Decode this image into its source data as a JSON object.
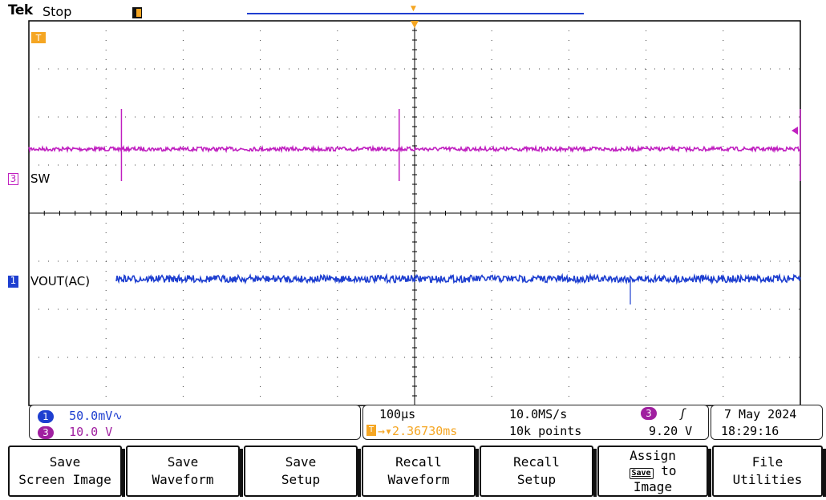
{
  "header": {
    "brand": "Tek",
    "run_state": "Stop"
  },
  "markers": {
    "trigger_marker": "T",
    "trigger_time_marker": "T",
    "channel3_marker": "3",
    "channel1_marker": "1"
  },
  "waveforms": {
    "ch3": {
      "label": "SW",
      "color": "#c020c0",
      "spike_times_div": [
        1.2,
        4.8,
        10.0
      ]
    },
    "ch1": {
      "label": "VOUT(AC)",
      "color": "#1e3fd0"
    }
  },
  "channel_settings": {
    "ch1": {
      "number": "1",
      "scale": "50.0mV∿",
      "color": "#1e3fd0"
    },
    "ch3": {
      "number": "3",
      "scale": "10.0 V",
      "color": "#a020a0"
    }
  },
  "timebase": {
    "scale": "100µs",
    "sample_rate": "10.0MS/s",
    "position": "→▾2.36730ms",
    "position_icon": "T",
    "record_length": "10k points"
  },
  "trigger": {
    "source": "3",
    "slope_icon": "rising-edge-icon",
    "slope_glyph": "ʃ",
    "level": "9.20 V"
  },
  "datetime": {
    "date": "7 May 2024",
    "time": "18:29:16"
  },
  "menu": {
    "buttons": [
      {
        "line1": "Save",
        "line2": "Screen Image"
      },
      {
        "line1": "Save",
        "line2": "Waveform"
      },
      {
        "line1": "Save",
        "line2": "Setup"
      },
      {
        "line1": "Recall",
        "line2": "Waveform"
      },
      {
        "line1": "Recall",
        "line2": "Setup"
      },
      {
        "line1": "Assign",
        "chip": "Save",
        "line2": "to",
        "line3": "Image"
      },
      {
        "line1": "File",
        "line2": "Utilities"
      }
    ]
  }
}
